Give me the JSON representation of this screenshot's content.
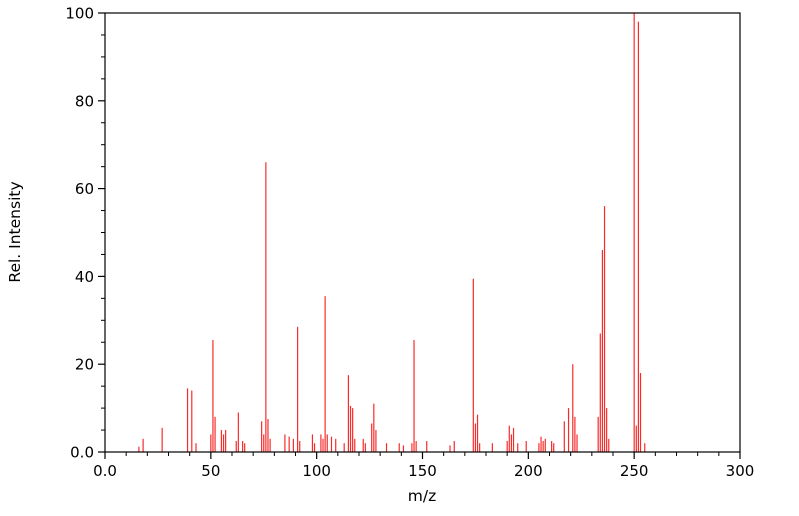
{
  "chart_data": {
    "type": "bar",
    "subtype": "mass-spectrum-stick-plot",
    "title": "",
    "xlabel": "m/z",
    "ylabel": "Rel. Intensity",
    "xlim": [
      0,
      300
    ],
    "ylim": [
      0,
      100
    ],
    "grid": false,
    "legend": null,
    "bar_color": "#f82b2b",
    "axis_color": "#000000",
    "background": "#ffffff",
    "x_ticks": {
      "values": [
        0,
        50,
        100,
        150,
        200,
        250,
        300
      ],
      "labels": [
        "0.0",
        "50",
        "100",
        "150",
        "200",
        "250",
        "300"
      ]
    },
    "y_ticks": {
      "values": [
        0,
        20,
        40,
        60,
        80,
        100
      ],
      "labels": [
        "0.0",
        "20",
        "40",
        "60",
        "80",
        "100"
      ]
    },
    "x_minor_step": 10,
    "y_minor_step": 5,
    "peaks": [
      [
        16,
        1.2
      ],
      [
        18,
        3
      ],
      [
        27,
        5.5
      ],
      [
        39,
        14.5
      ],
      [
        41,
        14
      ],
      [
        43,
        2
      ],
      [
        50,
        4
      ],
      [
        51,
        25.5
      ],
      [
        52,
        8
      ],
      [
        55,
        5
      ],
      [
        56,
        4
      ],
      [
        57,
        5
      ],
      [
        62,
        2.5
      ],
      [
        63,
        9
      ],
      [
        65,
        2.5
      ],
      [
        66,
        2
      ],
      [
        74,
        7
      ],
      [
        75,
        4
      ],
      [
        76,
        66
      ],
      [
        77,
        7.5
      ],
      [
        78,
        3
      ],
      [
        85,
        4
      ],
      [
        87,
        3.5
      ],
      [
        89,
        3
      ],
      [
        91,
        28.5
      ],
      [
        92,
        2.5
      ],
      [
        98,
        4
      ],
      [
        99,
        2
      ],
      [
        102,
        4
      ],
      [
        103,
        3
      ],
      [
        104,
        35.5
      ],
      [
        105,
        4
      ],
      [
        107,
        3.5
      ],
      [
        109,
        3
      ],
      [
        113,
        2
      ],
      [
        115,
        17.5
      ],
      [
        116,
        10.5
      ],
      [
        117,
        10
      ],
      [
        118,
        3
      ],
      [
        122,
        3
      ],
      [
        123,
        2
      ],
      [
        126,
        6.5
      ],
      [
        127,
        11
      ],
      [
        128,
        5
      ],
      [
        133,
        2
      ],
      [
        139,
        2
      ],
      [
        141,
        1.5
      ],
      [
        145,
        2
      ],
      [
        146,
        25.5
      ],
      [
        147,
        2.5
      ],
      [
        152,
        2.5
      ],
      [
        163,
        1.5
      ],
      [
        165,
        2.5
      ],
      [
        174,
        39.5
      ],
      [
        175,
        6.5
      ],
      [
        176,
        8.5
      ],
      [
        177,
        2
      ],
      [
        183,
        2
      ],
      [
        190,
        2.5
      ],
      [
        191,
        6
      ],
      [
        192,
        4
      ],
      [
        193,
        5.5
      ],
      [
        195,
        2
      ],
      [
        199,
        2.5
      ],
      [
        205,
        2
      ],
      [
        206,
        3.5
      ],
      [
        207,
        2.5
      ],
      [
        208,
        3
      ],
      [
        211,
        2.5
      ],
      [
        212,
        2
      ],
      [
        217,
        7
      ],
      [
        219,
        10
      ],
      [
        221,
        20
      ],
      [
        222,
        8
      ],
      [
        223,
        4
      ],
      [
        233,
        8
      ],
      [
        234,
        27
      ],
      [
        235,
        46
      ],
      [
        236,
        56
      ],
      [
        237,
        10
      ],
      [
        238,
        3
      ],
      [
        250,
        100
      ],
      [
        251,
        6
      ],
      [
        252,
        98
      ],
      [
        253,
        18
      ],
      [
        255,
        2
      ]
    ]
  }
}
